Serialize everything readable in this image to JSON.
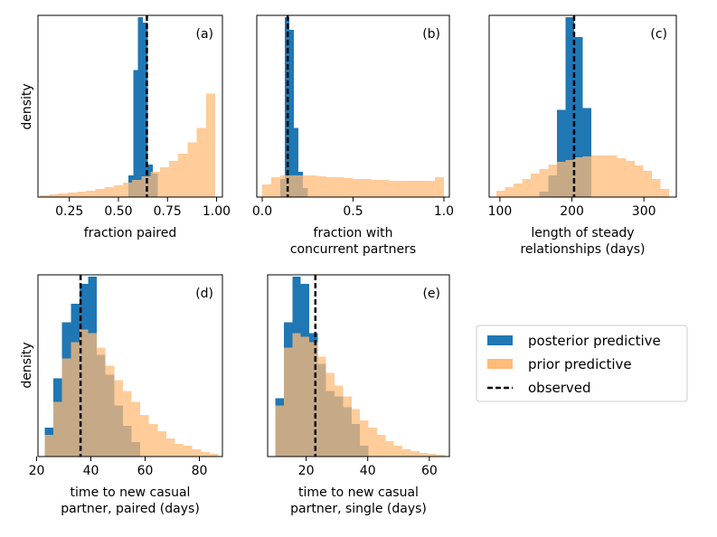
{
  "ylabel": "density",
  "colors": {
    "posterior": "#1f77b4",
    "prior": "#ffbb78",
    "observed": "#000000"
  },
  "legend": {
    "posterior": "posterior predictive",
    "prior": "prior predictive",
    "observed": "observed"
  },
  "chart_data": [
    {
      "type": "bar",
      "panel_label": "(a)",
      "xlabel": [
        "fraction paired"
      ],
      "xlim": [
        0.09,
        1.03
      ],
      "ylim": [
        0,
        1
      ],
      "xticks": [
        0.25,
        0.5,
        0.75,
        1.0
      ],
      "xtick_labels": [
        "0.25",
        "0.50",
        "0.75",
        "1.00"
      ],
      "observed": 0.645,
      "prior": {
        "bin_edges": [
          0.1,
          0.147,
          0.194,
          0.241,
          0.288,
          0.335,
          0.382,
          0.429,
          0.476,
          0.523,
          0.57,
          0.617,
          0.664,
          0.711,
          0.758,
          0.805,
          0.852,
          0.899,
          0.946,
          0.993
        ],
        "values": [
          0.01,
          0.015,
          0.02,
          0.025,
          0.03,
          0.035,
          0.045,
          0.055,
          0.065,
          0.08,
          0.095,
          0.115,
          0.14,
          0.165,
          0.2,
          0.24,
          0.3,
          0.38,
          0.57
        ]
      },
      "posterior": {
        "bin_edges": [
          0.55,
          0.575,
          0.6,
          0.625,
          0.65,
          0.675,
          0.7
        ],
        "values": [
          0.12,
          0.7,
          0.99,
          0.96,
          0.18,
          0.13
        ]
      }
    },
    {
      "type": "bar",
      "panel_label": "(b)",
      "xlabel": [
        "fraction with",
        "concurrent partners"
      ],
      "xlim": [
        -0.03,
        1.03
      ],
      "ylim": [
        0,
        1
      ],
      "xticks": [
        0,
        0.5,
        1.0
      ],
      "xtick_labels": [
        "0.0",
        "0.5",
        "1.0"
      ],
      "observed": 0.14,
      "prior": {
        "bin_edges": [
          0.0,
          0.05,
          0.1,
          0.15,
          0.2,
          0.25,
          0.3,
          0.35,
          0.4,
          0.45,
          0.5,
          0.55,
          0.6,
          0.65,
          0.7,
          0.75,
          0.8,
          0.85,
          0.9,
          0.95,
          1.0
        ],
        "values": [
          0.07,
          0.11,
          0.12,
          0.12,
          0.12,
          0.12,
          0.115,
          0.11,
          0.11,
          0.105,
          0.1,
          0.1,
          0.095,
          0.095,
          0.09,
          0.09,
          0.09,
          0.09,
          0.09,
          0.11
        ]
      },
      "posterior": {
        "bin_edges": [
          0.1,
          0.125,
          0.15,
          0.175,
          0.2,
          0.225,
          0.25
        ],
        "values": [
          0.1,
          0.99,
          0.92,
          0.38,
          0.14,
          0.05
        ]
      }
    },
    {
      "type": "bar",
      "panel_label": "(c)",
      "xlabel": [
        "length of steady",
        "relationships (days)"
      ],
      "xlim": [
        85,
        345
      ],
      "ylim": [
        0,
        1
      ],
      "xticks": [
        100,
        200,
        300
      ],
      "xtick_labels": [
        "100",
        "200",
        "300"
      ],
      "observed": 203,
      "prior": {
        "bin_edges": [
          95,
          107,
          119,
          131,
          143,
          155,
          167,
          179,
          191,
          203,
          215,
          227,
          239,
          251,
          263,
          275,
          287,
          299,
          311,
          323,
          335
        ],
        "values": [
          0.035,
          0.055,
          0.075,
          0.1,
          0.13,
          0.155,
          0.18,
          0.195,
          0.205,
          0.22,
          0.225,
          0.23,
          0.23,
          0.23,
          0.215,
          0.2,
          0.175,
          0.145,
          0.1,
          0.045
        ]
      },
      "posterior": {
        "bin_edges": [
          155,
          167,
          179,
          191,
          203,
          215,
          227
        ],
        "values": [
          0.03,
          0.12,
          0.48,
          0.99,
          0.88,
          0.49
        ]
      }
    },
    {
      "type": "bar",
      "panel_label": "(d)",
      "xlabel": [
        "time to new casual",
        "partner, paired (days)"
      ],
      "xlim": [
        20.5,
        88.5
      ],
      "ylim": [
        0,
        1
      ],
      "xticks": [
        20,
        40,
        60,
        80
      ],
      "xtick_labels": [
        "20",
        "40",
        "60",
        "80"
      ],
      "observed": 36.2,
      "prior": {
        "bin_edges": [
          23,
          26.2,
          29.4,
          32.6,
          35.8,
          39.0,
          42.2,
          45.4,
          48.6,
          51.8,
          55.0,
          58.2,
          61.4,
          64.6,
          67.8,
          71.0,
          74.2,
          77.4,
          80.6,
          83.8,
          87.0
        ],
        "values": [
          0.12,
          0.3,
          0.54,
          0.63,
          0.7,
          0.68,
          0.6,
          0.5,
          0.42,
          0.36,
          0.3,
          0.23,
          0.18,
          0.14,
          0.1,
          0.07,
          0.06,
          0.04,
          0.025,
          0.015
        ]
      },
      "posterior": {
        "bin_edges": [
          23,
          26.2,
          29.4,
          32.6,
          35.8,
          39.0,
          42.2,
          45.4,
          48.6,
          51.8,
          55.0,
          58.2
        ],
        "values": [
          0.16,
          0.43,
          0.74,
          0.84,
          0.95,
          0.99,
          0.56,
          0.45,
          0.28,
          0.17,
          0.08
        ]
      }
    },
    {
      "type": "bar",
      "panel_label": "(e)",
      "xlabel": [
        "time to new casual",
        "partner, single (days)"
      ],
      "xlim": [
        7.5,
        66.5
      ],
      "ylim": [
        0,
        1
      ],
      "xticks": [
        20,
        40,
        60
      ],
      "xtick_labels": [
        "20",
        "40",
        "60"
      ],
      "observed": 23,
      "prior": {
        "bin_edges": [
          10,
          12.75,
          15.5,
          18.25,
          21.0,
          23.75,
          26.5,
          29.25,
          32.0,
          34.75,
          37.5,
          40.25,
          43.0,
          45.75,
          48.5,
          51.25,
          54.0,
          56.75,
          59.5,
          62.25,
          65.0
        ],
        "values": [
          0.28,
          0.6,
          0.68,
          0.66,
          0.63,
          0.55,
          0.46,
          0.39,
          0.33,
          0.26,
          0.2,
          0.16,
          0.12,
          0.085,
          0.06,
          0.04,
          0.03,
          0.02,
          0.015,
          0.01
        ]
      },
      "posterior": {
        "bin_edges": [
          10,
          12.75,
          15.5,
          18.25,
          21.0,
          23.75,
          26.5,
          29.25,
          32.0,
          34.75,
          37.5,
          40.25
        ],
        "values": [
          0.32,
          0.74,
          0.99,
          0.95,
          0.68,
          0.51,
          0.36,
          0.33,
          0.27,
          0.18,
          0.06
        ]
      }
    }
  ]
}
